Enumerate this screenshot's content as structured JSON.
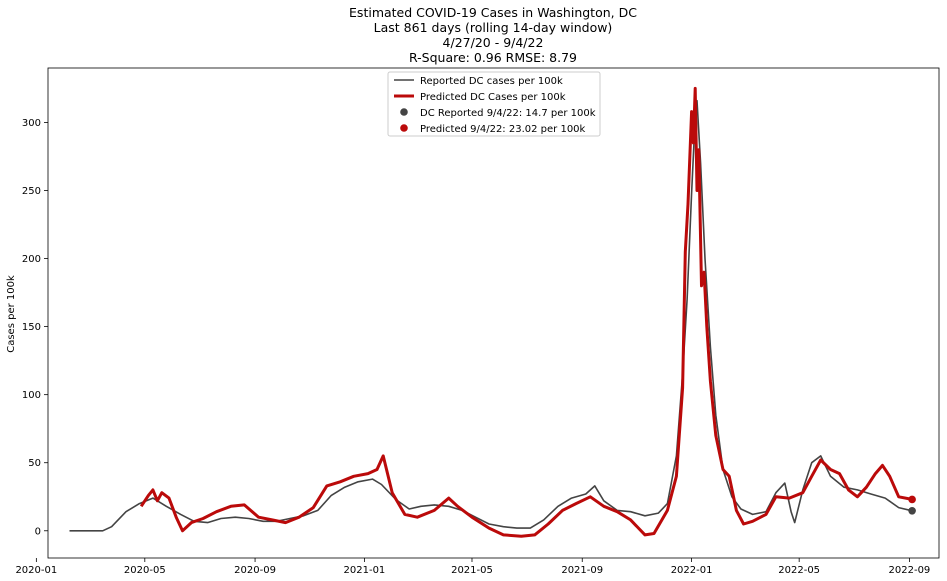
{
  "chart_data": {
    "type": "line",
    "title_lines": [
      "Estimated COVID-19 Cases in Washington, DC",
      "Last 861 days (rolling 14-day window)",
      "4/27/20 - 9/4/22",
      "R-Square: 0.96 RMSE: 8.79"
    ],
    "xlabel": "",
    "ylabel": "Cases per 100k",
    "xlim": [
      "2020-01-14",
      "2022-10-04"
    ],
    "ylim": [
      -20,
      340
    ],
    "xticks": [
      "2020-01",
      "2020-05",
      "2020-09",
      "2021-01",
      "2021-05",
      "2021-09",
      "2022-01",
      "2022-05",
      "2022-09"
    ],
    "xtick_labels": [
      "2020-01",
      "2020-05",
      "2020-09",
      "2021-01",
      "2021-05",
      "2021-09",
      "2022-01",
      "2022-05",
      "2022-09"
    ],
    "yticks": [
      0,
      50,
      100,
      150,
      200,
      250,
      300
    ],
    "grid": false,
    "legend_position": "top-center",
    "series": [
      {
        "name": "Reported DC cases per 100k",
        "color": "#444444",
        "points": [
          [
            "2020-02-07",
            0
          ],
          [
            "2020-03-15",
            0
          ],
          [
            "2020-03-25",
            3
          ],
          [
            "2020-04-10",
            14
          ],
          [
            "2020-04-25",
            20
          ],
          [
            "2020-05-10",
            24
          ],
          [
            "2020-05-25",
            18
          ],
          [
            "2020-06-10",
            12
          ],
          [
            "2020-06-25",
            7
          ],
          [
            "2020-07-10",
            6
          ],
          [
            "2020-07-25",
            9
          ],
          [
            "2020-08-10",
            10
          ],
          [
            "2020-08-25",
            9
          ],
          [
            "2020-09-10",
            7
          ],
          [
            "2020-09-25",
            7
          ],
          [
            "2020-10-10",
            9
          ],
          [
            "2020-10-25",
            11
          ],
          [
            "2020-11-10",
            15
          ],
          [
            "2020-11-25",
            26
          ],
          [
            "2020-12-10",
            32
          ],
          [
            "2020-12-25",
            36
          ],
          [
            "2021-01-10",
            38
          ],
          [
            "2021-01-20",
            34
          ],
          [
            "2021-02-05",
            23
          ],
          [
            "2021-02-20",
            16
          ],
          [
            "2021-03-05",
            18
          ],
          [
            "2021-03-20",
            19
          ],
          [
            "2021-04-05",
            18
          ],
          [
            "2021-04-20",
            15
          ],
          [
            "2021-05-05",
            10
          ],
          [
            "2021-05-20",
            5
          ],
          [
            "2021-06-05",
            3
          ],
          [
            "2021-06-20",
            2
          ],
          [
            "2021-07-05",
            2
          ],
          [
            "2021-07-20",
            8
          ],
          [
            "2021-08-05",
            18
          ],
          [
            "2021-08-20",
            24
          ],
          [
            "2021-09-05",
            27
          ],
          [
            "2021-09-15",
            33
          ],
          [
            "2021-09-25",
            22
          ],
          [
            "2021-10-10",
            15
          ],
          [
            "2021-10-25",
            14
          ],
          [
            "2021-11-10",
            11
          ],
          [
            "2021-11-25",
            13
          ],
          [
            "2021-12-05",
            20
          ],
          [
            "2021-12-15",
            55
          ],
          [
            "2021-12-22",
            115
          ],
          [
            "2021-12-27",
            170
          ],
          [
            "2022-01-01",
            248
          ],
          [
            "2022-01-04",
            290
          ],
          [
            "2022-01-07",
            316
          ],
          [
            "2022-01-11",
            270
          ],
          [
            "2022-01-16",
            200
          ],
          [
            "2022-01-22",
            135
          ],
          [
            "2022-01-28",
            85
          ],
          [
            "2022-02-05",
            45
          ],
          [
            "2022-02-15",
            25
          ],
          [
            "2022-02-25",
            16
          ],
          [
            "2022-03-10",
            12
          ],
          [
            "2022-03-25",
            14
          ],
          [
            "2022-04-05",
            28
          ],
          [
            "2022-04-15",
            35
          ],
          [
            "2022-04-22",
            14
          ],
          [
            "2022-04-26",
            6
          ],
          [
            "2022-05-05",
            30
          ],
          [
            "2022-05-15",
            50
          ],
          [
            "2022-05-25",
            55
          ],
          [
            "2022-06-05",
            40
          ],
          [
            "2022-06-20",
            32
          ],
          [
            "2022-07-05",
            30
          ],
          [
            "2022-07-20",
            27
          ],
          [
            "2022-08-05",
            24
          ],
          [
            "2022-08-20",
            17
          ],
          [
            "2022-09-04",
            14.7
          ]
        ]
      },
      {
        "name": "Predicted DC Cases per 100k",
        "color": "#bb0a0a",
        "points": [
          [
            "2020-04-27",
            18
          ],
          [
            "2020-05-05",
            26
          ],
          [
            "2020-05-10",
            30
          ],
          [
            "2020-05-15",
            22
          ],
          [
            "2020-05-20",
            28
          ],
          [
            "2020-05-28",
            24
          ],
          [
            "2020-06-05",
            10
          ],
          [
            "2020-06-12",
            0
          ],
          [
            "2020-06-22",
            6
          ],
          [
            "2020-07-05",
            9
          ],
          [
            "2020-07-20",
            14
          ],
          [
            "2020-08-05",
            18
          ],
          [
            "2020-08-20",
            19
          ],
          [
            "2020-09-05",
            10
          ],
          [
            "2020-09-20",
            8
          ],
          [
            "2020-10-05",
            6
          ],
          [
            "2020-10-20",
            10
          ],
          [
            "2020-11-05",
            17
          ],
          [
            "2020-11-20",
            33
          ],
          [
            "2020-12-05",
            36
          ],
          [
            "2020-12-20",
            40
          ],
          [
            "2021-01-05",
            42
          ],
          [
            "2021-01-15",
            45
          ],
          [
            "2021-01-22",
            55
          ],
          [
            "2021-02-01",
            28
          ],
          [
            "2021-02-15",
            12
          ],
          [
            "2021-03-01",
            10
          ],
          [
            "2021-03-20",
            15
          ],
          [
            "2021-04-05",
            24
          ],
          [
            "2021-04-15",
            18
          ],
          [
            "2021-05-01",
            10
          ],
          [
            "2021-05-20",
            2
          ],
          [
            "2021-06-05",
            -3
          ],
          [
            "2021-06-25",
            -4
          ],
          [
            "2021-07-10",
            -3
          ],
          [
            "2021-07-25",
            5
          ],
          [
            "2021-08-10",
            15
          ],
          [
            "2021-08-25",
            20
          ],
          [
            "2021-09-10",
            25
          ],
          [
            "2021-09-25",
            18
          ],
          [
            "2021-10-10",
            14
          ],
          [
            "2021-10-25",
            8
          ],
          [
            "2021-11-10",
            -3
          ],
          [
            "2021-11-20",
            -2
          ],
          [
            "2021-12-05",
            15
          ],
          [
            "2021-12-15",
            40
          ],
          [
            "2021-12-22",
            105
          ],
          [
            "2021-12-25",
            205
          ],
          [
            "2021-12-28",
            240
          ],
          [
            "2022-01-01",
            308
          ],
          [
            "2022-01-03",
            285
          ],
          [
            "2022-01-05",
            325
          ],
          [
            "2022-01-07",
            250
          ],
          [
            "2022-01-09",
            280
          ],
          [
            "2022-01-12",
            180
          ],
          [
            "2022-01-15",
            190
          ],
          [
            "2022-01-18",
            150
          ],
          [
            "2022-01-22",
            110
          ],
          [
            "2022-01-28",
            70
          ],
          [
            "2022-02-05",
            45
          ],
          [
            "2022-02-12",
            40
          ],
          [
            "2022-02-20",
            15
          ],
          [
            "2022-02-28",
            5
          ],
          [
            "2022-03-10",
            7
          ],
          [
            "2022-03-25",
            12
          ],
          [
            "2022-04-05",
            25
          ],
          [
            "2022-04-20",
            24
          ],
          [
            "2022-05-05",
            28
          ],
          [
            "2022-05-15",
            40
          ],
          [
            "2022-05-25",
            52
          ],
          [
            "2022-06-05",
            45
          ],
          [
            "2022-06-15",
            42
          ],
          [
            "2022-06-25",
            30
          ],
          [
            "2022-07-05",
            25
          ],
          [
            "2022-07-15",
            32
          ],
          [
            "2022-07-25",
            42
          ],
          [
            "2022-08-02",
            48
          ],
          [
            "2022-08-10",
            40
          ],
          [
            "2022-08-20",
            25
          ],
          [
            "2022-09-04",
            23.02
          ]
        ]
      }
    ],
    "end_markers": [
      {
        "name": "DC Reported 9/4/22: 14.7 per 100k",
        "date": "2022-09-04",
        "value": 14.7,
        "color": "#444444"
      },
      {
        "name": "Predicted 9/4/22: 23.02 per 100k",
        "date": "2022-09-04",
        "value": 23.02,
        "color": "#bb0a0a"
      }
    ]
  }
}
